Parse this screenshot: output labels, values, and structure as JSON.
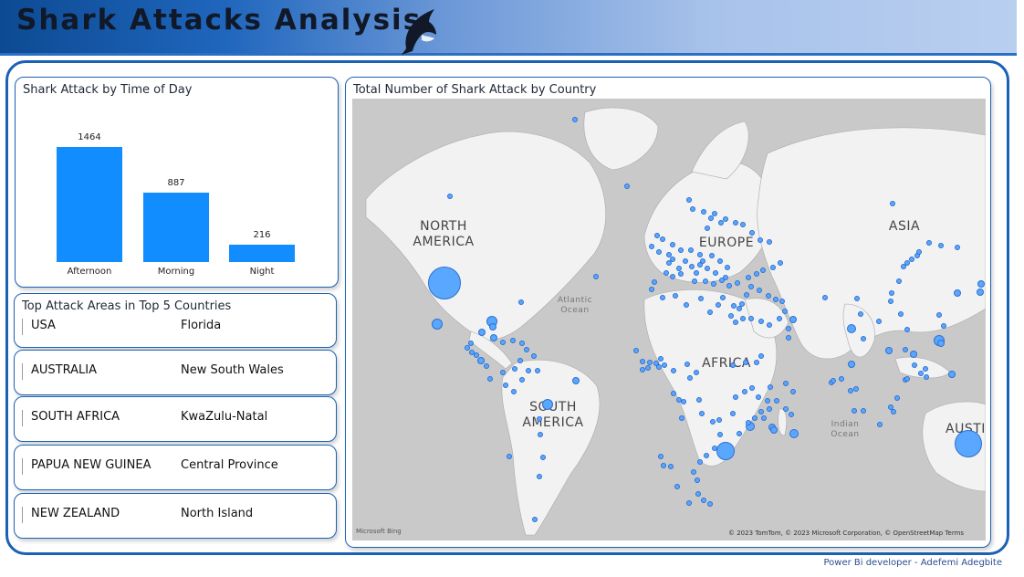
{
  "header": {
    "title": "Shark Attacks Analysis",
    "logo_icon": "shark-icon"
  },
  "time_of_day": {
    "title": "Shark Attack by Time of Day",
    "chart_data": {
      "type": "bar",
      "categories": [
        "Afternoon",
        "Morning",
        "Night"
      ],
      "values": [
        1464,
        887,
        216
      ],
      "title": "Shark Attack by Time of Day",
      "xlabel": "",
      "ylabel": "",
      "color": "#118dff"
    }
  },
  "top_areas": {
    "title": "Top Attack Areas in Top 5 Countries",
    "rows": [
      {
        "country": "USA",
        "area": "Florida"
      },
      {
        "country": "AUSTRALIA",
        "area": "New South Wales"
      },
      {
        "country": "SOUTH AFRICA",
        "area": "KwaZulu-Natal"
      },
      {
        "country": "PAPUA NEW GUINEA",
        "area": "Central Province"
      },
      {
        "country": "NEW ZEALAND",
        "area": "North Island"
      }
    ]
  },
  "map": {
    "title": "Total Number of Shark Attack by Country",
    "labels": {
      "north_america": "NORTH AMERICA",
      "south_america": "SOUTH AMERICA",
      "europe": "EUROPE",
      "africa": "AFRICA",
      "asia": "ASIA",
      "australia": "AUSTI",
      "atlantic": "Atlantic Ocean",
      "indian": "Indian Ocean"
    },
    "bing": "Microsoft Bing",
    "attribution": "© 2023 TomTom, © 2023 Microsoft Corporation, © OpenStreetMap  Terms",
    "bubble_color": "#5aa7ff"
  },
  "footer": {
    "credit": "Power Bi developer  -  Adefemi Adegbite"
  }
}
